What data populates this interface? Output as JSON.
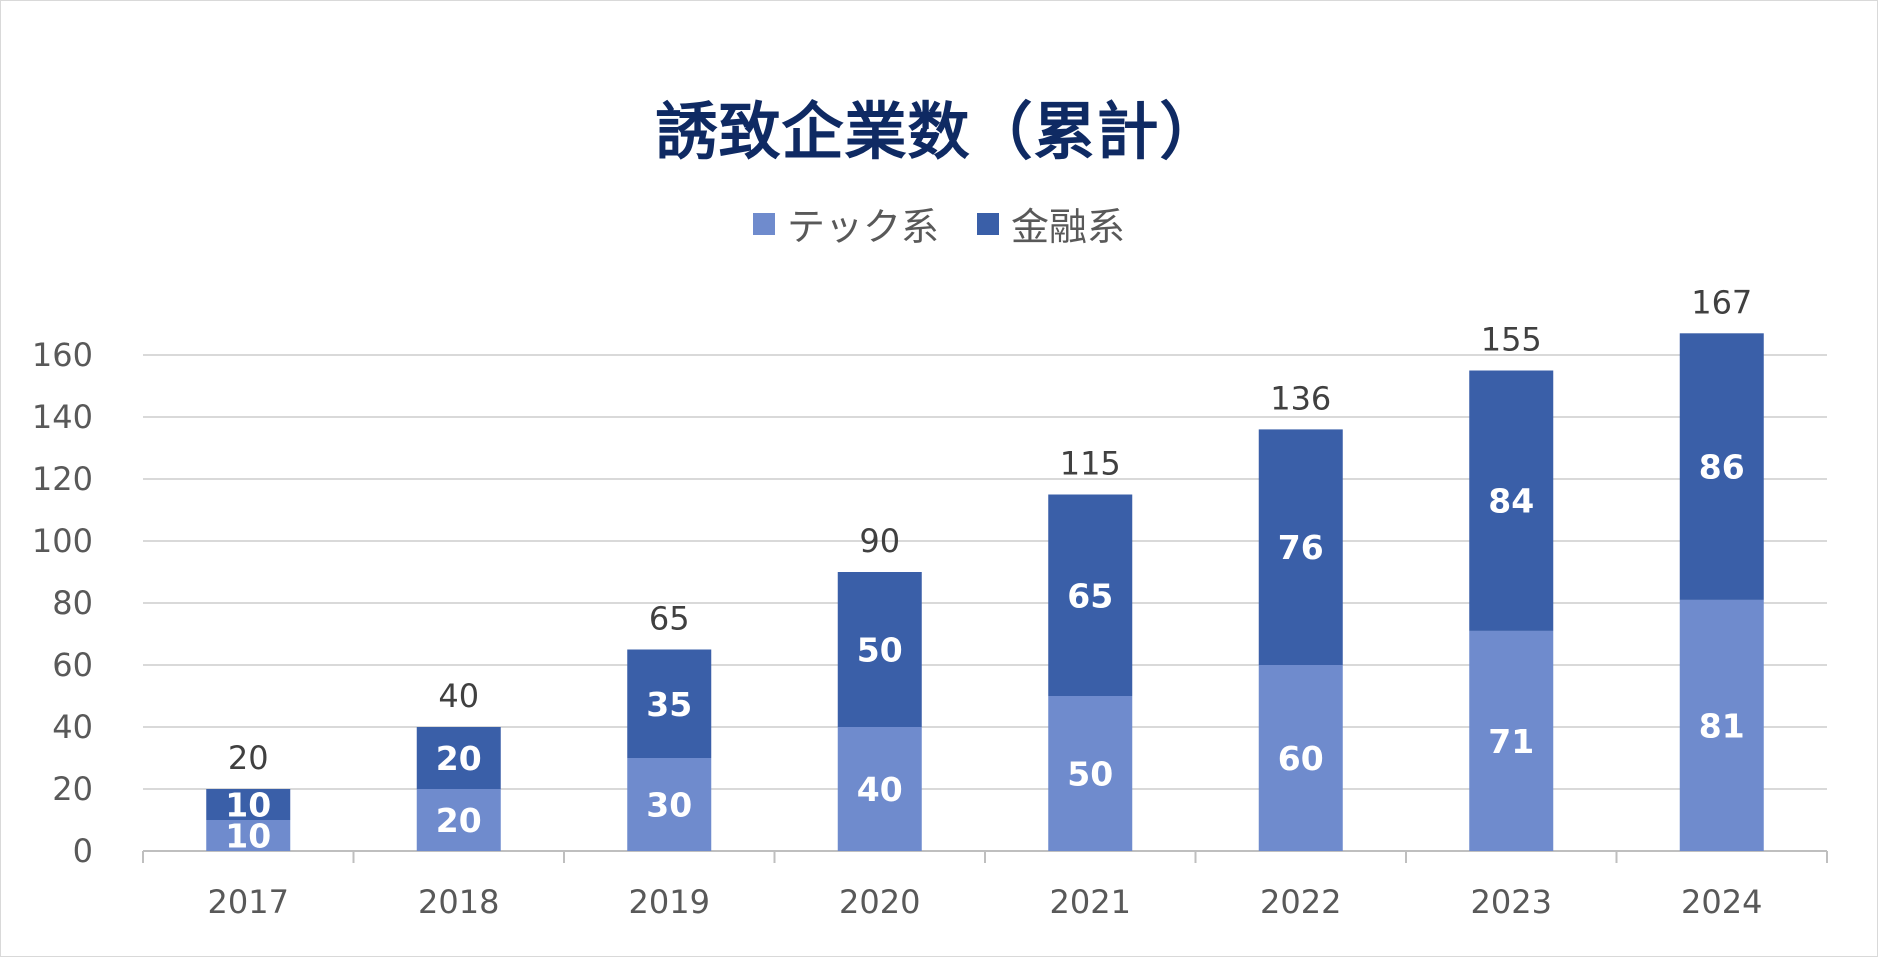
{
  "chart_data": {
    "type": "bar",
    "stacked": true,
    "title": "誘致企業数（累計）",
    "xlabel": "",
    "ylabel": "",
    "categories": [
      "2017",
      "2018",
      "2019",
      "2020",
      "2021",
      "2022",
      "2023",
      "2024"
    ],
    "series": [
      {
        "name": "テック系",
        "values": [
          10,
          20,
          30,
          40,
          50,
          60,
          71,
          81
        ],
        "color": "#6f8bcd"
      },
      {
        "name": "金融系",
        "values": [
          10,
          20,
          35,
          50,
          65,
          76,
          84,
          86
        ],
        "color": "#3a5fa8"
      }
    ],
    "totals": [
      20,
      40,
      65,
      90,
      115,
      136,
      155,
      167
    ],
    "ylim": [
      0,
      160
    ],
    "yticks": [
      "0",
      "20",
      "40",
      "60",
      "80",
      "100",
      "120",
      "140",
      "160"
    ],
    "grid": true,
    "legend_position": "top-center"
  }
}
